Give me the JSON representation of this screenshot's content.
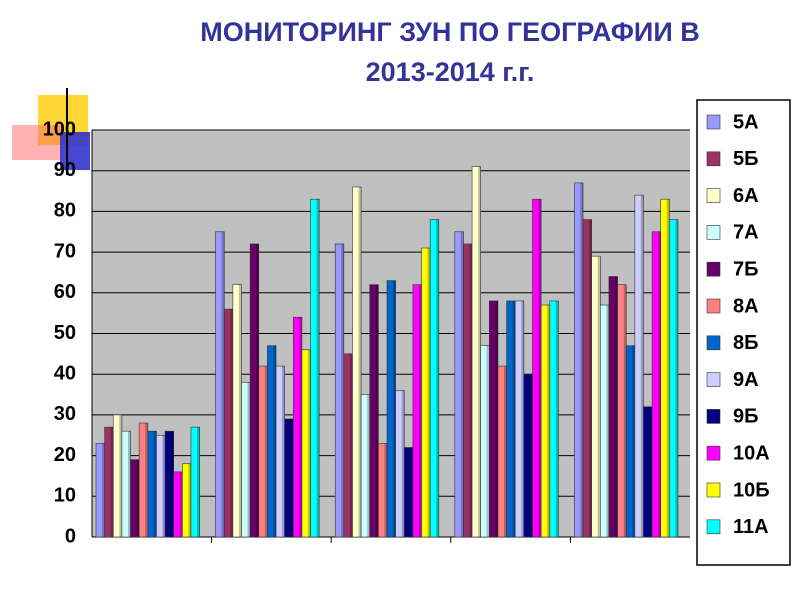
{
  "chart_data": {
    "type": "bar",
    "title": "МОНИТОРИНГ ЗУН ПО ГЕОГРАФИИ В 2013-2014 г.г.",
    "categories": [
      null,
      null,
      null,
      null,
      null
    ],
    "series": [
      {
        "name": "5А",
        "color": "#9999ff",
        "values": [
          23,
          75,
          72,
          75,
          87
        ]
      },
      {
        "name": "5Б",
        "color": "#993366",
        "values": [
          27,
          56,
          45,
          72,
          78
        ]
      },
      {
        "name": "6А",
        "color": "#ffffcc",
        "values": [
          30,
          62,
          86,
          91,
          69
        ]
      },
      {
        "name": "7А",
        "color": "#ccffff",
        "values": [
          26,
          38,
          35,
          47,
          57
        ]
      },
      {
        "name": "7Б",
        "color": "#660066",
        "values": [
          19,
          72,
          62,
          58,
          64
        ]
      },
      {
        "name": "8А",
        "color": "#ff8080",
        "values": [
          28,
          42,
          23,
          42,
          62
        ]
      },
      {
        "name": "8Б",
        "color": "#0066cc",
        "values": [
          26,
          47,
          63,
          58,
          47
        ]
      },
      {
        "name": "9А",
        "color": "#ccccff",
        "values": [
          25,
          42,
          36,
          58,
          84
        ]
      },
      {
        "name": "9Б",
        "color": "#000080",
        "values": [
          26,
          29,
          22,
          40,
          32
        ]
      },
      {
        "name": "10А",
        "color": "#ff00ff",
        "values": [
          16,
          54,
          62,
          83,
          75
        ]
      },
      {
        "name": "10Б",
        "color": "#ffff00",
        "values": [
          18,
          46,
          71,
          57,
          83
        ]
      },
      {
        "name": "11А",
        "color": "#00ffff",
        "values": [
          27,
          83,
          78,
          58,
          78
        ]
      }
    ],
    "ylim": [
      0,
      100
    ],
    "yticks": [
      0,
      10,
      20,
      30,
      40,
      50,
      60,
      70,
      80,
      90,
      100
    ],
    "grid": true,
    "legend": "right"
  }
}
